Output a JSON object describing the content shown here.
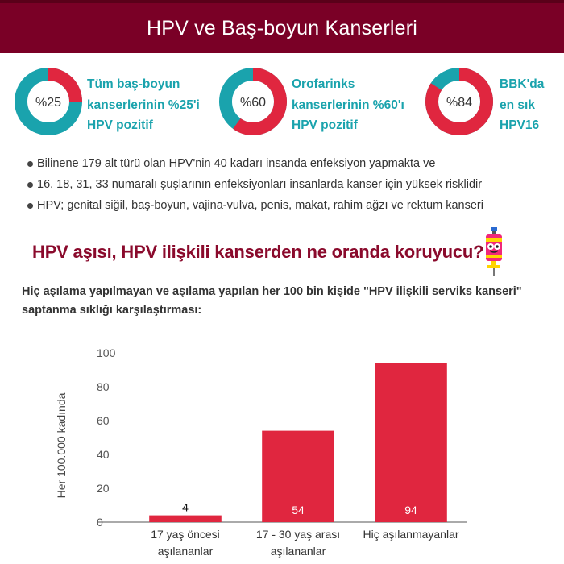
{
  "header": {
    "title": "HPV ve Baş-boyun Kanserleri"
  },
  "stats": [
    {
      "value_label": "%25",
      "percent": 25,
      "lines": [
        "Tüm baş-boyun",
        "kanserlerinin %25'i",
        "HPV pozitif"
      ]
    },
    {
      "value_label": "%60",
      "percent": 60,
      "lines": [
        "Orofarinks",
        "kanserlerinin %60'ı",
        "HPV pozitif"
      ]
    },
    {
      "value_label": "%84",
      "percent": 84,
      "lines": [
        "BBK'da",
        "en sık",
        "HPV16"
      ]
    }
  ],
  "bullets": [
    "Bilinene 179 alt türü olan HPV'nin 40 kadarı insanda enfeksiyon yapmakta ve",
    "16, 18, 31, 33 numaralı şuşlarının enfeksiyonları insanlarda kanser için yüksek risklidir",
    "HPV; genital siğil, baş-boyun, vajina-vulva, penis, makat, rahim ağzı ve rektum kanseri"
  ],
  "section_title": "HPV aşısı, HPV ilişkili kanserden ne oranda koruyucu?",
  "subtitle_lines": [
    "Hiç aşılama yapılmayan ve aşılama yapılan her 100 bin kişide \"HPV ilişkili serviks kanseri\"",
    "saptanma sıklığı karşılaştırması:"
  ],
  "colors": {
    "primary_red": "#e0263f",
    "teal": "#1aa3ad",
    "header_bg": "#7a0026",
    "title_dark_red": "#8a0a2c"
  },
  "chart_data": {
    "type": "bar",
    "categories": [
      [
        "17 yaş öncesi",
        "aşılananlar"
      ],
      [
        "17 - 30 yaş arası",
        "aşılananlar"
      ],
      [
        "Hiç aşılanmayanlar"
      ]
    ],
    "values": [
      4,
      54,
      94
    ],
    "value_labels": [
      "4",
      "54",
      "94"
    ],
    "ylabel": "Her 100.000 kadında",
    "ylim": [
      0,
      100
    ],
    "yticks": [
      "0",
      "20",
      "40",
      "60",
      "80",
      "100"
    ],
    "grid": false,
    "bar_color": "#e0263f"
  }
}
